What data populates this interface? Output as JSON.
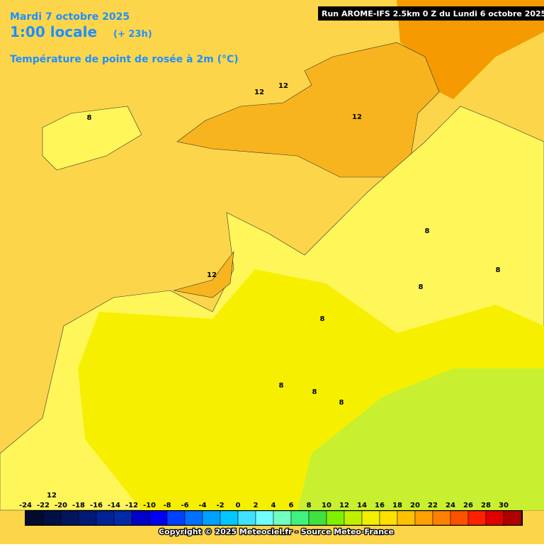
{
  "header": {
    "date": "Mardi 7 octobre 2025",
    "time": "1:00 locale",
    "lead": "(+ 23h)",
    "parameter": "Température de point de rosée à 2m (°C)",
    "run": "Run AROME-IFS 2.5km 0 Z du Lundi 6 octobre 2025"
  },
  "contour_labels": [
    "12",
    "12",
    "12",
    "12",
    "12",
    "8",
    "8",
    "8",
    "8",
    "8",
    "8",
    "8",
    "8"
  ],
  "legend": {
    "ticks": [
      -24,
      -22,
      -20,
      -18,
      -16,
      -14,
      -12,
      -10,
      -8,
      -6,
      -4,
      -2,
      0,
      2,
      4,
      6,
      8,
      10,
      12,
      14,
      16,
      18,
      20,
      22,
      24,
      26,
      28,
      30
    ],
    "colors": [
      "#000b2e",
      "#000f44",
      "#00155e",
      "#001a78",
      "#002293",
      "#002aa8",
      "#0000c8",
      "#0000f0",
      "#0040ff",
      "#0070ff",
      "#00a0ff",
      "#00c8ff",
      "#40e0ff",
      "#70ffff",
      "#70ffc0",
      "#40f080",
      "#40e040",
      "#80f000",
      "#c0f000",
      "#f0f000",
      "#ffe000",
      "#ffc000",
      "#ffa000",
      "#ff8000",
      "#ff5000",
      "#ff2000",
      "#e00000",
      "#b00000"
    ]
  },
  "footer": {
    "copyright": "Copyright © 2025 Meteociel.fr - Source Meteo-France"
  }
}
